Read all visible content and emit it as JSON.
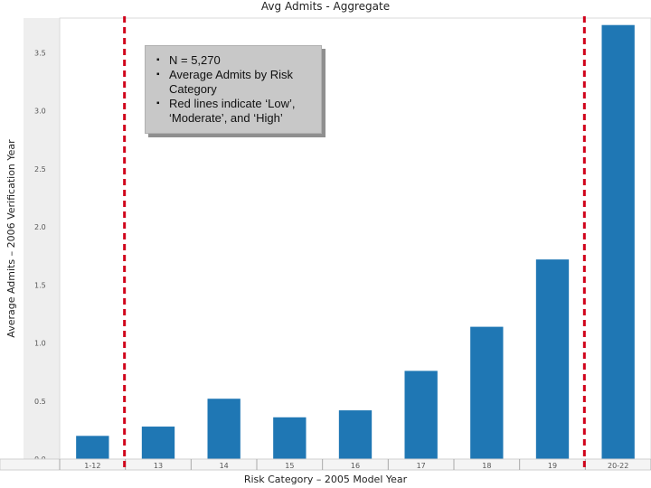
{
  "chart_data": {
    "type": "bar",
    "title": "Avg Admits - Aggregate",
    "xlabel": "Risk Category – 2005 Model Year",
    "ylabel": "Average Admits – 2006 Verification Year",
    "categories": [
      "1-12",
      "13",
      "14",
      "15",
      "16",
      "17",
      "18",
      "19",
      "20-22"
    ],
    "values": [
      0.2,
      0.28,
      0.52,
      0.36,
      0.42,
      0.76,
      1.14,
      1.72,
      3.74
    ],
    "ylim": [
      0,
      3.8
    ],
    "yticks": [
      "0.0",
      "0.5",
      "1.0",
      "1.5",
      "2.0",
      "2.5",
      "3.0",
      "3.5"
    ],
    "bar_color": "#1f77b4",
    "grid": false,
    "reference_lines": [
      {
        "between": [
          "1-12",
          "13"
        ],
        "color": "#d0021b",
        "style": "dashed"
      },
      {
        "between": [
          "19",
          "20-22"
        ],
        "color": "#d0021b",
        "style": "dashed"
      }
    ]
  },
  "annotation": {
    "items": [
      "N = 5,270",
      "Average Admits by Risk Category",
      "Red lines indicate ‘Low’, ‘Moderate’, and ‘High’"
    ]
  }
}
